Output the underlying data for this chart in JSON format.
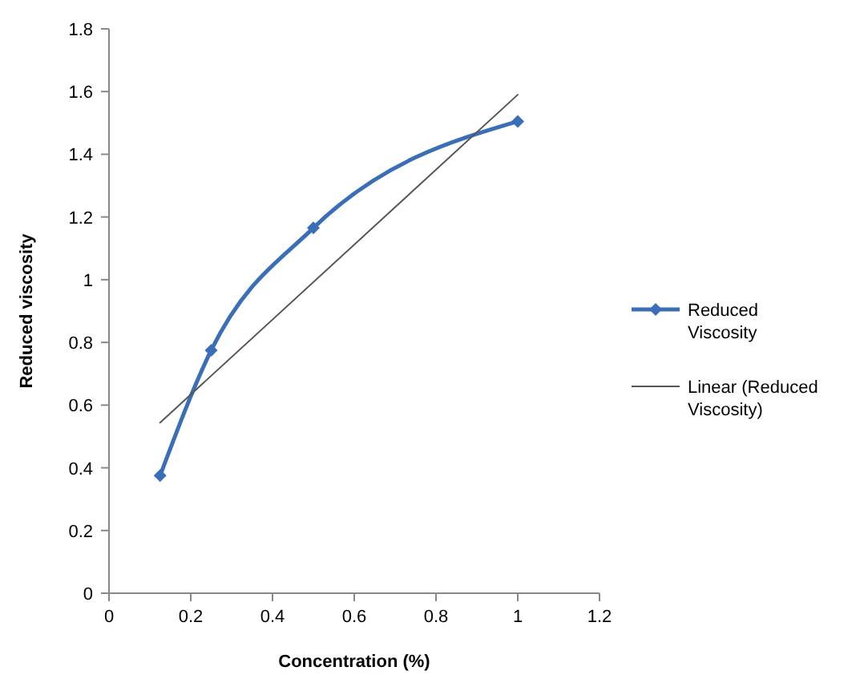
{
  "chart_data": {
    "type": "line",
    "xlabel": "Concentration (%)",
    "ylabel": "Reduced viscosity",
    "xlim": [
      0,
      1.2
    ],
    "xticks": [
      0,
      0.2,
      0.4,
      0.6,
      0.8,
      1,
      1.2
    ],
    "ylim": [
      0,
      1.8
    ],
    "yticks": [
      0,
      0.2,
      0.4,
      0.6,
      0.8,
      1,
      1.2,
      1.4,
      1.6,
      1.8
    ],
    "grid": false,
    "legend": "right",
    "series": [
      {
        "name": "Reduced Viscosity",
        "color": "#3a6fb7",
        "x": [
          0.125,
          0.25,
          0.5,
          1
        ],
        "values": [
          0.375,
          0.775,
          1.165,
          1.505
        ],
        "marker": "diamond",
        "line_style": "solid"
      },
      {
        "name": "Linear (Reduced Viscosity)",
        "color": "#555555",
        "x": [
          0.125,
          1
        ],
        "values": [
          0.544,
          1.59
        ],
        "marker": "none",
        "line_style": "solid"
      }
    ]
  }
}
